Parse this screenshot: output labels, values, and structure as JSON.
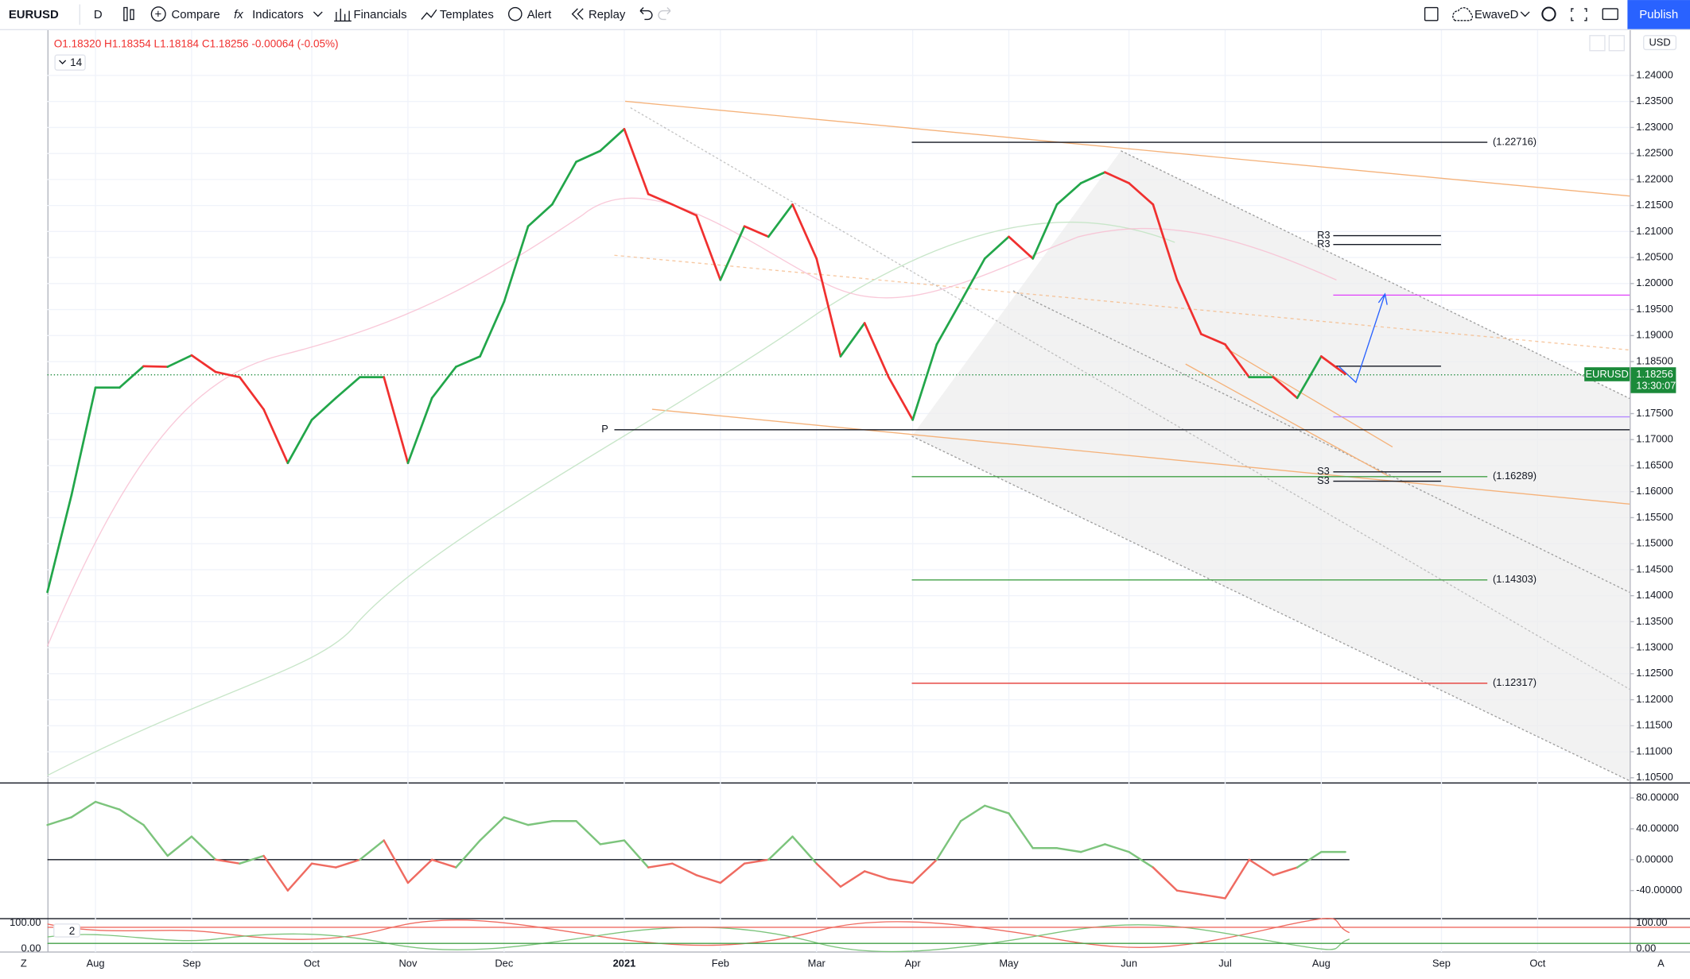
{
  "toolbar": {
    "symbol": "EURUSD",
    "interval": "D",
    "buttons": [
      "Compare",
      "Indicators",
      "Financials",
      "Templates",
      "Alert",
      "Replay"
    ],
    "layout": "EwaveD",
    "publish": "Publish"
  },
  "legend": {
    "open": "O1.18320",
    "high": "H1.18354",
    "low": "L1.18184",
    "close": "C1.18256",
    "change": "-0.00064 (-0.05%)",
    "length": "14"
  },
  "currency": "USD",
  "price_tag": {
    "symbol": "EURUSD",
    "price": "1.18256",
    "countdown": "13:30:07"
  },
  "lower_pane": {
    "length": "2",
    "ticks": [
      "100.00",
      "0.00"
    ]
  },
  "footer": {
    "left": "Z",
    "right": "A"
  },
  "chart_data": [
    {
      "type": "line",
      "categories": [
        null,
        null,
        "Aug",
        null,
        null,
        null,
        "Sep",
        null,
        null,
        null,
        null,
        "Oct",
        null,
        null,
        null,
        "Nov",
        null,
        null,
        null,
        "Dec",
        null,
        null,
        null,
        null,
        "2021",
        null,
        null,
        null,
        "Feb",
        null,
        null,
        null,
        "Mar",
        null,
        null,
        null,
        "Apr",
        null,
        null,
        null,
        "May",
        null,
        null,
        null,
        null,
        "Jun",
        null,
        null,
        null,
        "Jul",
        null,
        null,
        null,
        "Aug",
        null,
        null,
        null,
        null,
        "Sep",
        null,
        null,
        null,
        "Oct"
      ],
      "series": [
        {
          "name": "EURUSD",
          "up_color": "#22a64a",
          "down_color": "#f0302f",
          "values": [
            1.1407,
            1.1593,
            1.18,
            1.18,
            1.1841,
            1.184,
            1.1862,
            1.183,
            1.182,
            1.1758,
            1.1655,
            1.1738,
            1.178,
            1.182,
            1.182,
            1.1655,
            1.178,
            1.184,
            1.186,
            1.1965,
            1.211,
            1.2152,
            1.2234,
            1.2255,
            1.2297,
            1.2172,
            1.2152,
            1.2131,
            1.2007,
            1.211,
            1.209,
            1.2152,
            1.2048,
            1.186,
            1.1924,
            1.182,
            1.1738,
            1.1883,
            1.1965,
            1.2048,
            1.209,
            1.2048,
            1.2152,
            1.2193,
            1.2214,
            1.2193,
            1.2152,
            1.2007,
            1.1903,
            1.1883,
            1.182,
            1.182,
            1.178,
            1.186,
            1.1826,
            null,
            null,
            null,
            null,
            null,
            null,
            null,
            null
          ]
        }
      ],
      "ylim": [
        1.104,
        1.2487
      ],
      "yticks": [
        {
          "value": 1.24,
          "label": "1.24000"
        },
        {
          "value": 1.235,
          "label": "1.23500"
        },
        {
          "value": 1.23,
          "label": "1.23000"
        },
        {
          "value": 1.225,
          "label": "1.22500"
        },
        {
          "value": 1.22,
          "label": "1.22000"
        },
        {
          "value": 1.215,
          "label": "1.21500"
        },
        {
          "value": 1.21,
          "label": "1.21000"
        },
        {
          "value": 1.205,
          "label": "1.20500"
        },
        {
          "value": 1.2,
          "label": "1.20000"
        },
        {
          "value": 1.195,
          "label": "1.19500"
        },
        {
          "value": 1.19,
          "label": "1.19000"
        },
        {
          "value": 1.185,
          "label": "1.18500"
        },
        {
          "value": 1.175,
          "label": "1.17500"
        },
        {
          "value": 1.17,
          "label": "1.17000"
        },
        {
          "value": 1.165,
          "label": "1.16500"
        },
        {
          "value": 1.16,
          "label": "1.16000"
        },
        {
          "value": 1.155,
          "label": "1.15500"
        },
        {
          "value": 1.15,
          "label": "1.15000"
        },
        {
          "value": 1.145,
          "label": "1.14500"
        },
        {
          "value": 1.14,
          "label": "1.14000"
        },
        {
          "value": 1.135,
          "label": "1.13500"
        },
        {
          "value": 1.13,
          "label": "1.13000"
        },
        {
          "value": 1.125,
          "label": "1.12500"
        },
        {
          "value": 1.12,
          "label": "1.12000"
        },
        {
          "value": 1.115,
          "label": "1.11500"
        },
        {
          "value": 1.11,
          "label": "1.11000"
        },
        {
          "value": 1.105,
          "label": "1.10500"
        }
      ],
      "grid": true,
      "fib_levels": [
        {
          "label": "(1.22716)",
          "value": 1.22716,
          "color": "#131722"
        },
        {
          "label": "(1.16289)",
          "value": 1.16289,
          "color": "#43a047"
        },
        {
          "label": "(1.14303)",
          "value": 1.14303,
          "color": "#43a047"
        },
        {
          "label": "(1.12317)",
          "value": 1.12317,
          "color": "#e53935"
        }
      ],
      "pivots": [
        {
          "label": "R3",
          "value": 1.2092
        },
        {
          "label": "R3",
          "value": 1.2075
        },
        {
          "label": "S3",
          "value": 1.1638
        },
        {
          "label": "S3",
          "value": 1.162
        }
      ],
      "pivot_point": {
        "label": "P",
        "value": 1.1719
      }
    },
    {
      "type": "line",
      "series": [
        {
          "up_color": "#7cc47c",
          "down_color": "#ef6b61",
          "values": [
            45,
            55,
            75,
            65,
            45,
            5,
            30,
            0,
            -5,
            5,
            -40,
            -5,
            -10,
            0,
            25,
            -30,
            0,
            -10,
            25,
            55,
            45,
            50,
            50,
            20,
            25,
            -10,
            -5,
            -20,
            -30,
            -5,
            0,
            30,
            -5,
            -35,
            -15,
            -25,
            -30,
            0,
            50,
            70,
            60,
            15,
            15,
            10,
            20,
            10,
            -10,
            -40,
            -45,
            -50,
            0,
            -20,
            -10,
            10,
            10,
            null,
            null,
            null,
            null,
            null,
            null,
            null,
            null
          ]
        }
      ],
      "ylim": [
        -75,
        98
      ],
      "yticks": [
        {
          "value": 80,
          "label": "80.00000"
        },
        {
          "value": 40,
          "label": "40.00000"
        },
        {
          "value": 0,
          "label": "0.00000"
        },
        {
          "value": -40,
          "label": "-40.00000"
        }
      ]
    }
  ]
}
